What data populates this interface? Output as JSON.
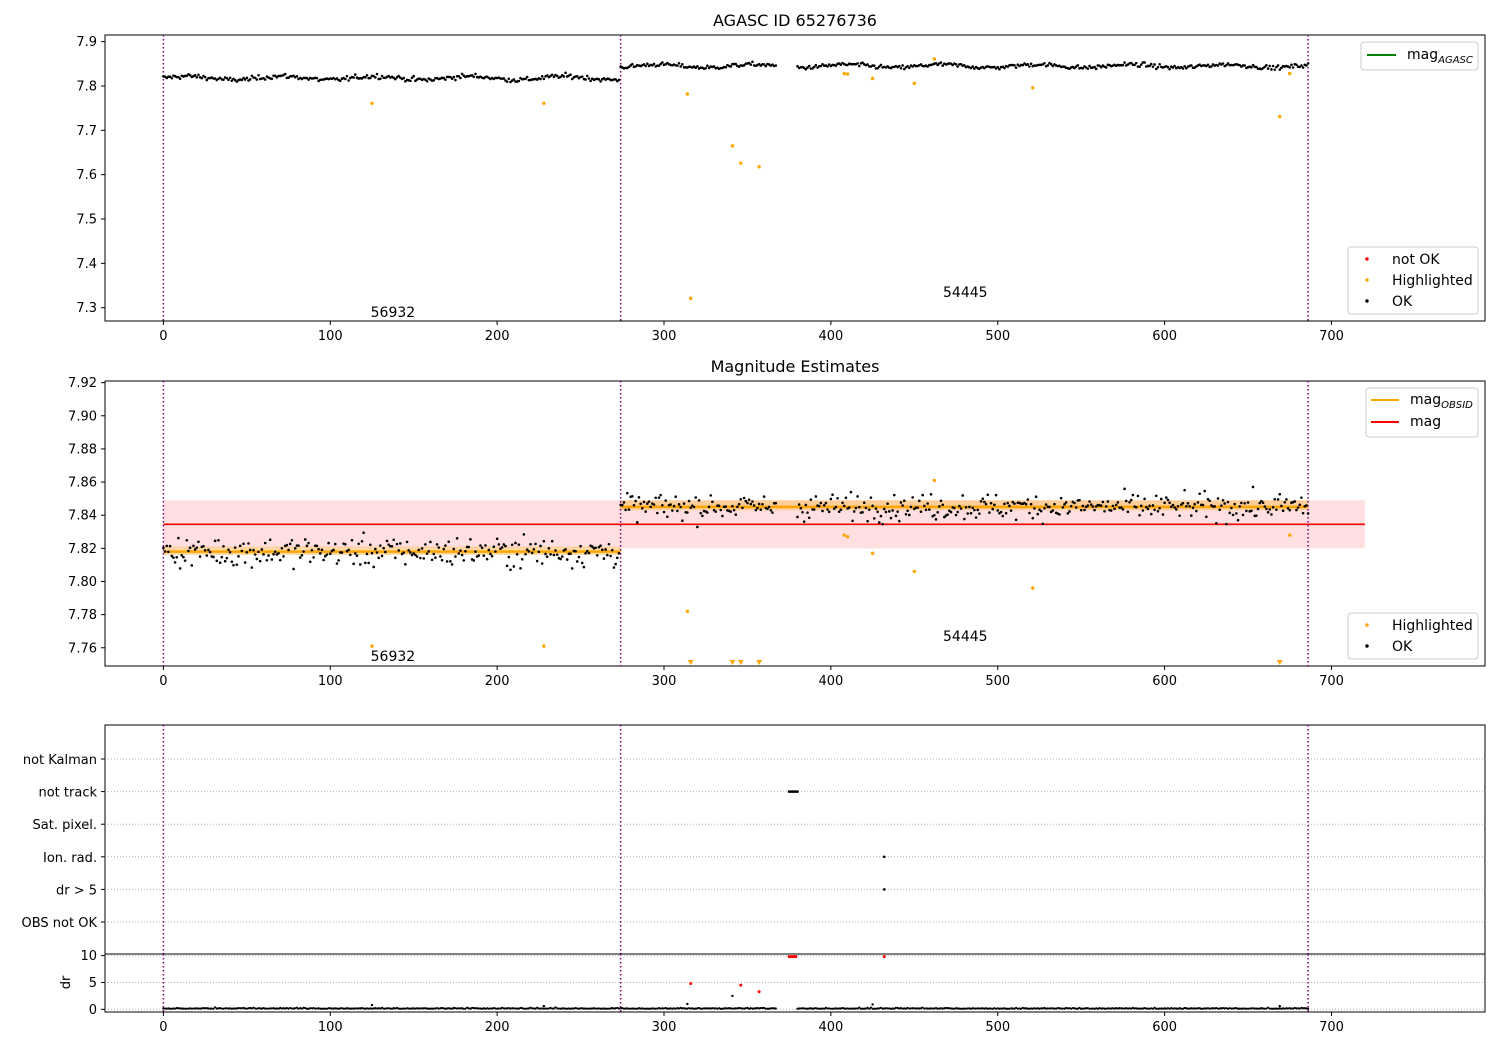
{
  "figure": {
    "title_top": "AGASC ID 65276736",
    "title_middle": "Magnitude Estimates",
    "obsids": [
      {
        "label": "56932",
        "start": 0,
        "end": 274
      },
      {
        "label": "54445",
        "start": 274,
        "end": 686
      }
    ]
  },
  "colors": {
    "ok": "#000000",
    "highlighted": "#ffa500",
    "not_ok": "#ff0000",
    "agasc_line": "#008000",
    "obsid_line": "#ffa500",
    "mean_line": "#ff0000",
    "boundary": "#800080"
  },
  "chart_data": [
    {
      "type": "scatter",
      "title": "AGASC ID 65276736",
      "xlim": [
        -35,
        792
      ],
      "ylim": [
        7.27,
        7.915
      ],
      "xticks": [
        0,
        100,
        200,
        300,
        400,
        500,
        600,
        700
      ],
      "yticks": [
        7.3,
        7.4,
        7.5,
        7.6,
        7.7,
        7.8,
        7.9
      ],
      "boundaries": [
        0,
        274,
        686
      ],
      "obsid_labels": [
        {
          "text": "56932",
          "x": 123,
          "y": 7.29
        },
        {
          "text": "54445",
          "x": 466,
          "y": 7.335
        }
      ],
      "ok_model": [
        {
          "start": 0,
          "end": 273,
          "mean": 7.818,
          "spread": 0.007
        },
        {
          "start": 274,
          "end": 686,
          "mean": 7.845,
          "spread": 0.006
        }
      ],
      "highlighted_points": [
        [
          125,
          7.761
        ],
        [
          228,
          7.761
        ],
        [
          314,
          7.782
        ],
        [
          316,
          7.321
        ],
        [
          341,
          7.665
        ],
        [
          346,
          7.626
        ],
        [
          357,
          7.618
        ],
        [
          408,
          7.828
        ],
        [
          410,
          7.827
        ],
        [
          425,
          7.817
        ],
        [
          450,
          7.806
        ],
        [
          462,
          7.861
        ],
        [
          521,
          7.796
        ],
        [
          669,
          7.731
        ],
        [
          675,
          7.828
        ]
      ],
      "legend_upper": [
        {
          "label": "mag",
          "subscript": "AGASC",
          "kind": "line",
          "color": "#008000"
        }
      ],
      "legend_lower": [
        {
          "label": "not OK",
          "kind": "dot",
          "color": "#ff0000"
        },
        {
          "label": "Highlighted",
          "kind": "dot",
          "color": "#ffa500"
        },
        {
          "label": "OK",
          "kind": "dot",
          "color": "#000000"
        }
      ]
    },
    {
      "type": "scatter",
      "title": "Magnitude Estimates",
      "xlim": [
        -35,
        792
      ],
      "ylim": [
        7.749,
        7.921
      ],
      "xticks": [
        0,
        100,
        200,
        300,
        400,
        500,
        600,
        700
      ],
      "yticks": [
        7.76,
        7.78,
        7.8,
        7.82,
        7.84,
        7.86,
        7.88,
        7.9,
        7.92
      ],
      "boundaries": [
        0,
        274,
        686
      ],
      "obsid_labels": [
        {
          "text": "56932",
          "x": 123,
          "y": 7.755
        },
        {
          "text": "54445",
          "x": 466,
          "y": 7.767
        }
      ],
      "mean_mag": {
        "value": 7.8345,
        "band_low": 7.82,
        "band_high": 7.849,
        "xmin": 0,
        "xmax": 720
      },
      "obsid_mags": [
        {
          "start": 0,
          "end": 274,
          "value": 7.818,
          "band_low": 7.816,
          "band_high": 7.821
        },
        {
          "start": 274,
          "end": 686,
          "value": 7.845,
          "band_low": 7.843,
          "band_high": 7.849
        }
      ],
      "highlighted_points": [
        [
          125,
          7.761
        ],
        [
          228,
          7.761
        ],
        [
          314,
          7.782
        ],
        [
          408,
          7.828
        ],
        [
          410,
          7.827
        ],
        [
          425,
          7.817
        ],
        [
          450,
          7.806
        ],
        [
          462,
          7.861
        ],
        [
          521,
          7.796
        ],
        [
          675,
          7.828
        ]
      ],
      "below_axis_markers": [
        316,
        341,
        346,
        357,
        669
      ],
      "legend_upper": [
        {
          "label": "mag",
          "subscript": "OBSID",
          "kind": "line",
          "color": "#ffa500"
        },
        {
          "label": "mag",
          "subscript": "",
          "kind": "line",
          "color": "#ff0000"
        }
      ],
      "legend_lower": [
        {
          "label": "Highlighted",
          "kind": "dot",
          "color": "#ffa500"
        },
        {
          "label": "OK",
          "kind": "dot",
          "color": "#000000"
        }
      ]
    },
    {
      "type": "scatter",
      "title": "",
      "xlim": [
        -35,
        792
      ],
      "flag_labels": [
        "not Kalman",
        "not track",
        "Sat. pixel.",
        "Ion. rad.",
        "dr > 5",
        "OBS not OK"
      ],
      "boundaries": [
        0,
        274,
        686
      ],
      "flag_points": [
        {
          "flag": "not track",
          "x": [
            375,
            376,
            377,
            378,
            379,
            380
          ]
        },
        {
          "flag": "Ion. rad.",
          "x": [
            432
          ]
        },
        {
          "flag": "dr > 5",
          "x": [
            432
          ]
        }
      ]
    },
    {
      "type": "scatter",
      "title": "",
      "ylabel": "dr",
      "xlim": [
        -35,
        792
      ],
      "ylim": [
        -0.5,
        10.3
      ],
      "xticks": [
        0,
        100,
        200,
        300,
        400,
        500,
        600,
        700
      ],
      "yticks": [
        0,
        5,
        10
      ],
      "boundaries": [
        0,
        274,
        686
      ],
      "red_points": [
        [
          316,
          4.8
        ],
        [
          346,
          4.5
        ],
        [
          357,
          3.3
        ],
        [
          375,
          9.8
        ],
        [
          376,
          9.8
        ],
        [
          377,
          9.8
        ],
        [
          378,
          9.8
        ],
        [
          379,
          9.8
        ],
        [
          432,
          9.8
        ]
      ],
      "black_points": [
        [
          125,
          0.8
        ],
        [
          228,
          0.6
        ],
        [
          314,
          1.0
        ],
        [
          341,
          2.5
        ],
        [
          425,
          0.9
        ],
        [
          669,
          0.6
        ]
      ],
      "baseline_value": 0.1
    }
  ]
}
